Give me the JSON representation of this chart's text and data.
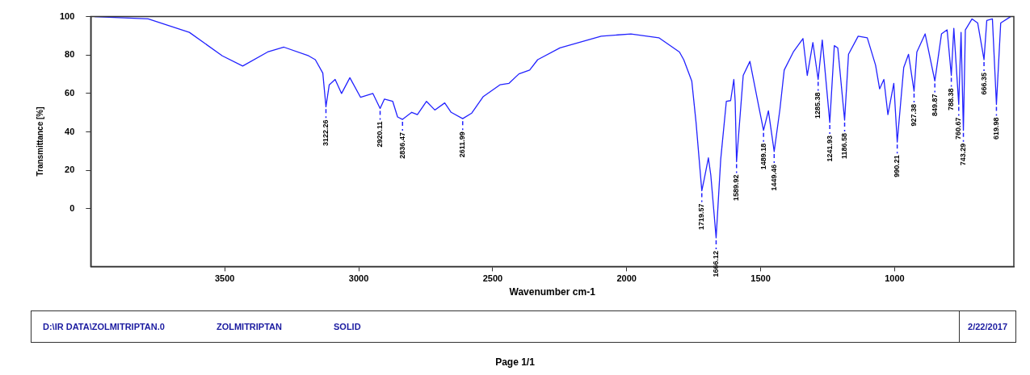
{
  "chart_data": {
    "type": "line",
    "xlabel": "Wavenumber cm-1",
    "ylabel": "Transmittance [%]",
    "xlim": [
      4000,
      555
    ],
    "xticks": [
      3500,
      3000,
      2500,
      2000,
      1500,
      1000
    ],
    "ylim": [
      -30,
      100
    ],
    "yticks": [
      0,
      20,
      40,
      60,
      80,
      100
    ],
    "grid": false,
    "legend": false,
    "marker": "none",
    "line_style": "solid",
    "series": [
      {
        "color": "#2222ff",
        "x": [
          3986,
          3786,
          3632,
          3509,
          3433,
          3340,
          3279,
          3187,
          3162,
          3134,
          3122.26,
          3110,
          3088,
          3064,
          3033,
          2993,
          2947,
          2920.11,
          2904,
          2873,
          2855,
          2836.47,
          2802,
          2781,
          2747,
          2716,
          2679,
          2655,
          2611.99,
          2578,
          2535,
          2473,
          2439,
          2402,
          2362,
          2332,
          2249,
          2095,
          1984,
          1880,
          1803,
          1787,
          1757,
          1741,
          1719.57,
          1711,
          1695,
          1686,
          1666.12,
          1649,
          1628,
          1612,
          1600,
          1595,
          1589.92,
          1565,
          1540,
          1505,
          1489.18,
          1471,
          1449.46,
          1428,
          1412,
          1378,
          1342,
          1326,
          1305,
          1285.38,
          1270,
          1241.93,
          1225,
          1212,
          1186.58,
          1172,
          1136,
          1102,
          1071,
          1056,
          1040,
          1025,
          1003,
          990.21,
          966,
          948,
          927.38,
          917,
          886,
          849.87,
          825,
          804,
          788.38,
          779,
          760.67,
          752,
          743.29,
          736,
          711,
          690,
          666.35,
          656,
          635,
          619.98,
          604,
          567
        ],
        "values": [
          100,
          98.8,
          91.8,
          79.6,
          74.3,
          81.6,
          84.1,
          79.6,
          77.6,
          70.6,
          53.1,
          64.5,
          67.3,
          60,
          68.2,
          58,
          60,
          52.2,
          57.1,
          55.9,
          47.8,
          46.5,
          50.2,
          49,
          55.9,
          51.4,
          55.1,
          50.2,
          46.9,
          49.8,
          58.4,
          64.5,
          65.3,
          70.2,
          72.2,
          77.6,
          83.7,
          89.8,
          91,
          89,
          81.6,
          77.6,
          66.5,
          44.9,
          9.4,
          15.1,
          26.5,
          17.6,
          -15.1,
          25.7,
          55.9,
          56.3,
          67.3,
          55.9,
          24.5,
          69.4,
          76.7,
          51.8,
          40.8,
          51,
          29.8,
          51.8,
          72.2,
          81.6,
          88.6,
          69.4,
          86.5,
          67.3,
          87.8,
          44.9,
          84.9,
          83.7,
          46.1,
          80.4,
          89.8,
          89,
          74.7,
          62.4,
          67.3,
          49,
          65.3,
          34.7,
          73.5,
          80.4,
          61.2,
          81.6,
          91,
          66.5,
          91,
          93.1,
          69.4,
          93.9,
          54.3,
          91.8,
          40.8,
          93.1,
          98.8,
          96.7,
          77.6,
          98,
          98.8,
          54.3,
          96.7,
          100
        ]
      }
    ],
    "annotations": [
      {
        "text": "3122.26",
        "x": 3122.26,
        "y": 53.1
      },
      {
        "text": "2920.11",
        "x": 2920.11,
        "y": 52.2
      },
      {
        "text": "2836.47",
        "x": 2836.47,
        "y": 46.5
      },
      {
        "text": "2611.99",
        "x": 2611.99,
        "y": 46.9
      },
      {
        "text": "1719.57",
        "x": 1719.57,
        "y": 9.4
      },
      {
        "text": "1666.12",
        "x": 1666.12,
        "y": -15.1
      },
      {
        "text": "1589.92",
        "x": 1589.92,
        "y": 24.5
      },
      {
        "text": "1489.18",
        "x": 1489.18,
        "y": 40.8
      },
      {
        "text": "1449.46",
        "x": 1449.46,
        "y": 29.8
      },
      {
        "text": "1285.38",
        "x": 1285.38,
        "y": 67.3
      },
      {
        "text": "1241.93",
        "x": 1241.93,
        "y": 44.9
      },
      {
        "text": "1186.58",
        "x": 1186.58,
        "y": 46.1
      },
      {
        "text": "990.21",
        "x": 990.21,
        "y": 34.7
      },
      {
        "text": "927.38",
        "x": 927.38,
        "y": 61.2
      },
      {
        "text": "849.87",
        "x": 849.87,
        "y": 66.5
      },
      {
        "text": "788.38",
        "x": 788.38,
        "y": 69.4
      },
      {
        "text": "760.67",
        "x": 760.67,
        "y": 54.3
      },
      {
        "text": "743.29",
        "x": 743.29,
        "y": 40.8
      },
      {
        "text": "666.35",
        "x": 666.35,
        "y": 77.6
      },
      {
        "text": "619.98",
        "x": 619.98,
        "y": 54.3
      },
      "D:\\IR DATA\\ZOLMITRIPTAN.0",
      "ZOLMITRIPTAN",
      "SOLID",
      "2/22/2017",
      "Page 1/1"
    ]
  }
}
